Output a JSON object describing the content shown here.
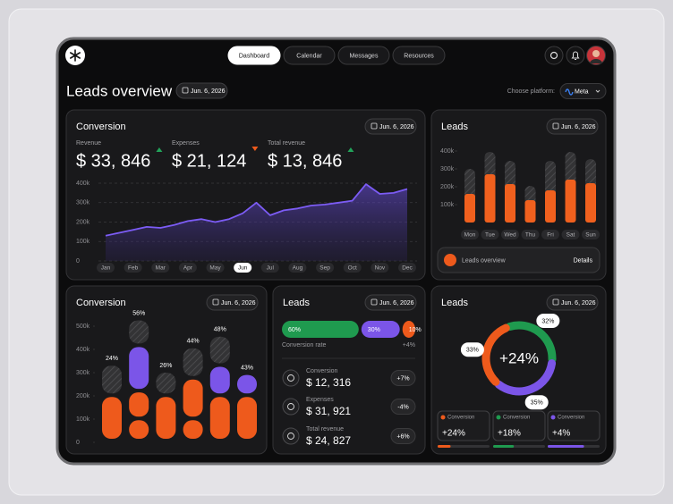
{
  "nav": {
    "items": [
      "Dashboard",
      "Calendar",
      "Messages",
      "Resources"
    ],
    "active": 0
  },
  "header": {
    "title": "Leads overview",
    "date": "Jun. 6, 2026",
    "platform_label": "Choose platform:",
    "platform": "Meta"
  },
  "chart_data": [
    {
      "type": "area",
      "title": "Conversion",
      "date": "Jun. 6, 2026",
      "stats": [
        {
          "label": "Revenue",
          "value": "$ 33, 846",
          "trend": "up"
        },
        {
          "label": "Expenses",
          "value": "$ 21, 124",
          "trend": "down"
        },
        {
          "label": "Total revenue",
          "value": "$ 13, 846",
          "trend": "up"
        }
      ],
      "x": [
        0,
        0.5,
        1,
        1.5,
        2,
        2.5,
        3,
        3.5,
        4,
        4.5,
        5,
        5.5,
        6,
        6.5,
        7,
        7.5,
        8,
        8.5,
        9,
        9.5,
        10,
        10.5,
        11
      ],
      "values": [
        130000,
        145000,
        160000,
        175000,
        170000,
        185000,
        205000,
        215000,
        200000,
        215000,
        245000,
        300000,
        235000,
        260000,
        270000,
        285000,
        290000,
        300000,
        310000,
        395000,
        345000,
        350000,
        370000
      ],
      "color": "#7c5cf5",
      "xlim": [
        0,
        11
      ],
      "xticks": [
        {
          "value": 0,
          "label": "Jan"
        },
        {
          "value": 1,
          "label": "Feb"
        },
        {
          "value": 2,
          "label": "Mar"
        },
        {
          "value": 3,
          "label": "Apr"
        },
        {
          "value": 4,
          "label": "May"
        },
        {
          "value": 5,
          "label": "Jun"
        },
        {
          "value": 6,
          "label": "Jul"
        },
        {
          "value": 7,
          "label": "Aug"
        },
        {
          "value": 8,
          "label": "Sep"
        },
        {
          "value": 9,
          "label": "Oct"
        },
        {
          "value": 10,
          "label": "Nov"
        },
        {
          "value": 11,
          "label": "Dec"
        }
      ],
      "active_xtick": 5,
      "ylim": [
        0,
        400000
      ],
      "yticks": [
        0,
        {
          "value": 100000,
          "label": "100k"
        },
        {
          "value": 200000,
          "label": "200k"
        },
        {
          "value": 300000,
          "label": "300k"
        },
        {
          "value": 400000,
          "label": "400k"
        }
      ],
      "grid": true
    },
    {
      "type": "bar",
      "title": "Leads",
      "date": "Jun. 6, 2026",
      "categories": [
        "Mon",
        "Tue",
        "Wed",
        "Thu",
        "Fri",
        "Sat",
        "Sun"
      ],
      "series": [
        {
          "color": "#3a3a3c",
          "hatched": true,
          "values": [
            300000,
            395000,
            345000,
            205000,
            345000,
            395000,
            355000
          ]
        },
        {
          "color": "#f0601e",
          "values": [
            160000,
            270000,
            215000,
            125000,
            180000,
            240000,
            220000
          ]
        }
      ],
      "ylim": [
        0,
        400000
      ],
      "yticks": [
        {
          "value": 100000,
          "label": "100k"
        },
        {
          "value": 200000,
          "label": "200k"
        },
        {
          "value": 300000,
          "label": "300k"
        },
        {
          "value": 400000,
          "label": "400k"
        }
      ],
      "footer": {
        "label": "Leads overview",
        "action": "Details"
      }
    },
    {
      "type": "stacked_pill",
      "title": "Conversion",
      "date": "Jun. 6, 2026",
      "values": [
        24,
        56,
        26,
        44,
        48,
        43
      ],
      "value_labels": [
        "24%",
        "56%",
        "26%",
        "44%",
        "48%",
        "43%"
      ],
      "series": [
        {
          "color": "#ee5a1c",
          "values": [
            195000,
            95000,
            195000,
            95000,
            195000,
            195000
          ]
        },
        {
          "color": "#ee5a1c",
          "values": [
            null,
            120000,
            null,
            175000,
            null,
            null
          ]
        },
        {
          "color": "#7b55e8",
          "values": [
            null,
            195000,
            null,
            null,
            130000,
            95000
          ]
        },
        {
          "color": "#3a3a3c",
          "hatched": true,
          "values": [
            135000,
            115000,
            105000,
            135000,
            130000,
            null
          ]
        }
      ],
      "ylim": [
        0,
        500000
      ],
      "yticks": [
        0,
        {
          "value": 100000,
          "label": "100k"
        },
        {
          "value": 200000,
          "label": "200k"
        },
        {
          "value": 300000,
          "label": "300k"
        },
        {
          "value": 400000,
          "label": "400k"
        },
        {
          "value": 500000,
          "label": "500k"
        }
      ]
    },
    {
      "type": "breakdown",
      "title": "Leads",
      "date": "Jun. 6, 2026",
      "values": [
        60,
        30,
        10
      ],
      "value_labels": [
        "60%",
        "30%",
        "10%"
      ],
      "colors": [
        "#1f9a4f",
        "#7b55e8",
        "#ee5a1c"
      ],
      "rate_label": "Conversion rate",
      "rate": "+4%",
      "rows": [
        {
          "label": "Conversion",
          "value": "$ 12, 316",
          "change": "+7%"
        },
        {
          "label": "Expenses",
          "value": "$ 31, 921",
          "change": "-4%"
        },
        {
          "label": "Total revenue",
          "value": "$ 24, 827",
          "change": "+6%"
        }
      ]
    },
    {
      "type": "donut",
      "title": "Leads",
      "date": "Jun. 6, 2026",
      "values": [
        32,
        35,
        33
      ],
      "value_labels": [
        "32%",
        "35%",
        "33%"
      ],
      "colors": [
        "#1f9a4f",
        "#7b55e8",
        "#ee5a1c"
      ],
      "center": "+24%",
      "cards": [
        {
          "label": "Conversion",
          "value": "+24%",
          "color": "#ee5a1c",
          "progress": 25
        },
        {
          "label": "Conversion",
          "value": "+18%",
          "color": "#1f9a4f",
          "progress": 40
        },
        {
          "label": "Conversion",
          "value": "+4%",
          "color": "#7b55e8",
          "progress": 70
        }
      ]
    }
  ]
}
